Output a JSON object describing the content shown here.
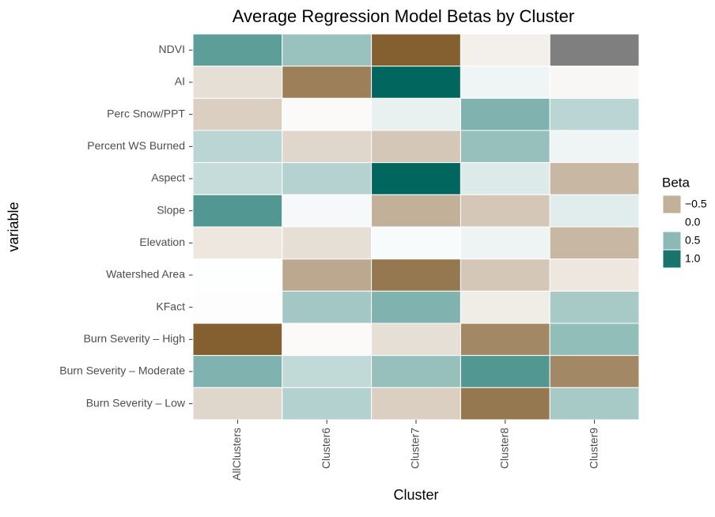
{
  "chart_data": {
    "type": "heatmap",
    "title": "Average Regression Model Betas by Cluster",
    "x_label": "Cluster",
    "y_label": "variable",
    "x_categories": [
      "AllClusters",
      "Cluster6",
      "Cluster7",
      "Cluster8",
      "Cluster9"
    ],
    "y_categories": [
      "NDVI",
      "AI",
      "Perc Snow/PPT",
      "Percent WS Burned",
      "Aspect",
      "Slope",
      "Elevation",
      "Watershed Area",
      "KFact",
      "Burn Severity – High",
      "Burn Severity – Moderate",
      "Burn Severity – Low"
    ],
    "values": [
      [
        0.7,
        0.44,
        -1.0,
        -0.1,
        null
      ],
      [
        -0.2,
        -0.8,
        1.1,
        0.07,
        -0.05
      ],
      [
        -0.3,
        -0.03,
        0.1,
        0.55,
        0.3
      ],
      [
        0.3,
        -0.25,
        -0.35,
        0.45,
        0.07
      ],
      [
        0.25,
        0.32,
        1.1,
        0.15,
        -0.45
      ],
      [
        0.75,
        0.04,
        -0.5,
        -0.35,
        0.13
      ],
      [
        -0.15,
        -0.2,
        0.03,
        0.08,
        -0.45
      ],
      [
        0.01,
        -0.55,
        -0.85,
        -0.35,
        -0.15
      ],
      [
        -0.01,
        0.4,
        0.55,
        -0.12,
        0.38
      ],
      [
        -1.0,
        -0.03,
        -0.2,
        -0.75,
        0.47
      ],
      [
        0.55,
        0.27,
        0.45,
        0.75,
        -0.75
      ],
      [
        -0.25,
        0.33,
        -0.3,
        -0.85,
        0.38
      ]
    ],
    "color_scale": {
      "low": "#846031",
      "mid": "#ffffff",
      "high": "#01665e",
      "na": "#7f7f7f",
      "limits": [
        -1.0,
        1.1
      ]
    },
    "legend_title": "Beta",
    "legend_ticks": [
      {
        "value": -0.5,
        "label": "−0.5"
      },
      {
        "value": 0,
        "label": "0.0"
      },
      0.5,
      {
        "value": 1.0,
        "label": "1.0"
      }
    ]
  }
}
